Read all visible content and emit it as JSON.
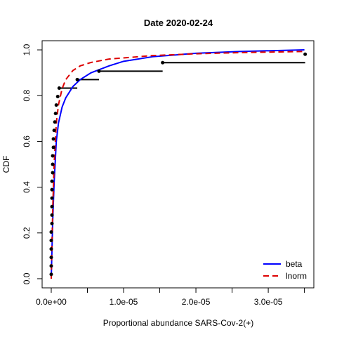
{
  "chart_data": {
    "type": "cdf",
    "title": "Date 2020-02-24",
    "xlabel": "Proportional abundance SARS-Cov-2(+)",
    "ylabel": "CDF",
    "xlim": [
      -1.26e-06,
      3.63e-05
    ],
    "ylim": [
      -0.04,
      1.04
    ],
    "xticks": [
      {
        "value": 0,
        "label": "0.0e+00"
      },
      {
        "value": 1e-05,
        "label": "1.0e-05"
      },
      {
        "value": 2e-05,
        "label": "2.0e-05"
      },
      {
        "value": 3e-05,
        "label": "3.0e-05"
      }
    ],
    "xminor_ticks": [
      5e-06,
      1.5e-05,
      2.5e-05,
      3.5e-05
    ],
    "yticks": [
      {
        "value": 0,
        "label": "0.0"
      },
      {
        "value": 0.2,
        "label": "0.2"
      },
      {
        "value": 0.4,
        "label": "0.4"
      },
      {
        "value": 0.6,
        "label": "0.6"
      },
      {
        "value": 0.8,
        "label": "0.8"
      },
      {
        "value": 1,
        "label": "1.0"
      }
    ],
    "empirical": {
      "color": "#000000",
      "x": [
        0,
        0,
        0,
        0,
        0,
        0,
        1e-07,
        1e-07,
        1e-07,
        1e-07,
        1e-07,
        1e-07,
        2e-07,
        2e-07,
        2e-07,
        3e-07,
        3e-07,
        4e-07,
        5e-07,
        6e-07,
        7e-07,
        9e-07,
        1.1e-06,
        3.6e-06,
        6.6e-06,
        1.54e-05,
        3.51e-05
      ],
      "values": [
        0.019,
        0.056,
        0.093,
        0.13,
        0.167,
        0.204,
        0.241,
        0.278,
        0.315,
        0.352,
        0.389,
        0.426,
        0.463,
        0.5,
        0.537,
        0.574,
        0.611,
        0.648,
        0.685,
        0.722,
        0.759,
        0.796,
        0.833,
        0.87,
        0.907,
        0.944,
        0.981
      ]
    },
    "x": [
      0,
      2e-07,
      4e-07,
      7e-07,
      1e-06,
      1.5e-06,
      2e-06,
      3e-06,
      4e-06,
      5.5e-06,
      8e-06,
      1e-05,
      1.4e-05,
      2e-05,
      2.6e-05,
      3.5e-05
    ],
    "series": [
      {
        "name": "beta",
        "color": "#0000ff",
        "dashed": false,
        "values": [
          0,
          0.25,
          0.42,
          0.6,
          0.68,
          0.75,
          0.79,
          0.84,
          0.87,
          0.9,
          0.93,
          0.95,
          0.97,
          0.985,
          0.993,
          1.0
        ]
      },
      {
        "name": "lnorm",
        "color": "#dd0000",
        "dashed": true,
        "values": [
          0,
          0.3,
          0.5,
          0.68,
          0.76,
          0.83,
          0.87,
          0.91,
          0.93,
          0.945,
          0.96,
          0.965,
          0.975,
          0.983,
          0.988,
          0.993
        ]
      }
    ],
    "legend": "bottomright"
  }
}
